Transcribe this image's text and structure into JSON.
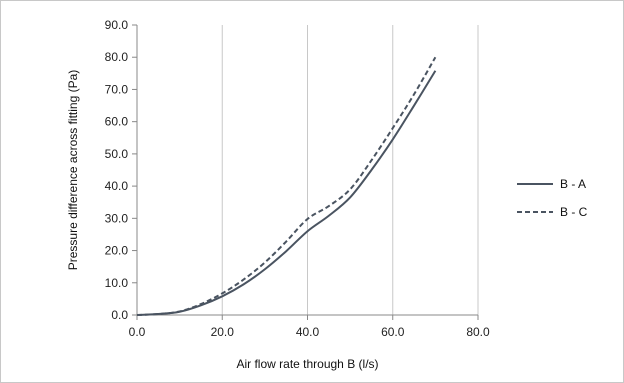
{
  "chart_data": {
    "type": "line",
    "title": "",
    "xlabel": "Air flow rate through B (l/s)",
    "ylabel": "Pressure difference across fitting (Pa)",
    "xlim": [
      0,
      80
    ],
    "ylim": [
      0,
      90
    ],
    "x_ticks": [
      "0.0",
      "20.0",
      "40.0",
      "60.0",
      "80.0"
    ],
    "y_ticks": [
      "0.0",
      "10.0",
      "20.0",
      "30.0",
      "40.0",
      "50.0",
      "60.0",
      "70.0",
      "80.0",
      "90.0"
    ],
    "grid": "vertical",
    "legend_position": "right",
    "series": [
      {
        "name": "B - A",
        "style": "solid",
        "color": "#4a5461",
        "x": [
          0,
          5,
          10,
          15,
          20,
          25,
          30,
          35,
          40,
          45,
          50,
          55,
          60,
          65,
          70
        ],
        "y": [
          0.0,
          0.3,
          1.0,
          3.0,
          5.8,
          9.5,
          14.2,
          19.8,
          26.0,
          30.8,
          36.5,
          45.0,
          54.5,
          65.0,
          75.8
        ]
      },
      {
        "name": "B - C",
        "style": "dashed",
        "color": "#4a5461",
        "x": [
          0,
          5,
          10,
          15,
          20,
          25,
          30,
          35,
          40,
          45,
          50,
          55,
          60,
          65,
          70
        ],
        "y": [
          0.0,
          0.3,
          1.1,
          3.4,
          6.7,
          11.0,
          16.3,
          22.8,
          29.8,
          33.8,
          39.0,
          48.0,
          58.0,
          68.5,
          80.0
        ]
      }
    ]
  }
}
